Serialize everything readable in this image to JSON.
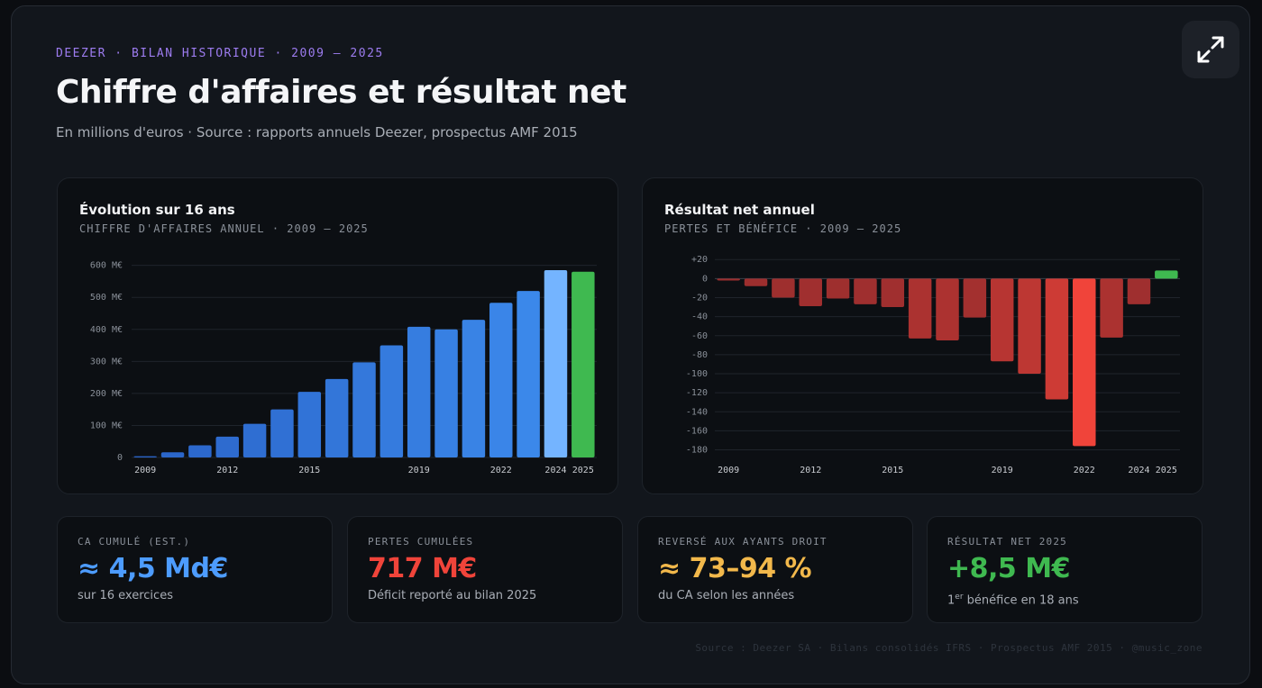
{
  "header": {
    "eyebrow": "DEEZER · BILAN HISTORIQUE · 2009 – 2025",
    "title": "Chiffre d'affaires et résultat net",
    "subtitle": "En millions d'euros · Source : rapports annuels Deezer, prospectus AMF 2015"
  },
  "toolbar": {
    "expand_icon": "expand-icon"
  },
  "chart_data": [
    {
      "type": "bar",
      "title": "Évolution sur 16 ans",
      "subtitle": "CHIFFRE D'AFFAIRES ANNUEL · 2009 – 2025",
      "categories": [
        "2009",
        "2010",
        "2011",
        "2012",
        "2013",
        "2014",
        "2015",
        "2016",
        "2017",
        "2018",
        "2019",
        "2020",
        "2021",
        "2022",
        "2023",
        "2024",
        "2025"
      ],
      "x_tick_labels": [
        "2009",
        "",
        "",
        "2012",
        "",
        "",
        "2015",
        "",
        "",
        "",
        "2019",
        "",
        "",
        "2022",
        "",
        "2024",
        "2025"
      ],
      "values": [
        4,
        16,
        38,
        65,
        105,
        150,
        205,
        245,
        297,
        350,
        408,
        400,
        430,
        483,
        520,
        585,
        580
      ],
      "y_tick_labels": [
        "600 M€",
        "500 M€",
        "400 M€",
        "300 M€",
        "200 M€",
        "100 M€",
        "0"
      ],
      "y_ticks": [
        600,
        500,
        400,
        300,
        200,
        100,
        0
      ],
      "ylim": [
        0,
        630
      ],
      "colors": {
        "base": "#2a63c8",
        "mid": "#3b88ea",
        "latest": "#74b4ff",
        "highlight": "#3fb950"
      }
    },
    {
      "type": "bar",
      "title": "Résultat net annuel",
      "subtitle": "PERTES ET BÉNÉFICE · 2009 – 2025",
      "categories": [
        "2009",
        "2010",
        "2011",
        "2012",
        "2013",
        "2014",
        "2015",
        "2016",
        "2017",
        "2018",
        "2019",
        "2020",
        "2021",
        "2022",
        "2023",
        "2024",
        "2025"
      ],
      "x_tick_labels": [
        "2009",
        "",
        "",
        "2012",
        "",
        "",
        "2015",
        "",
        "",
        "",
        "2019",
        "",
        "",
        "2022",
        "",
        "2024",
        "2025"
      ],
      "values": [
        -2,
        -8,
        -20,
        -29,
        -21,
        -27,
        -30,
        -63,
        -65,
        -41,
        -87,
        -100,
        -127,
        -176,
        -62,
        -27,
        8.5
      ],
      "y_tick_labels": [
        "+20",
        "0",
        "-20",
        "-40",
        "-60",
        "-80",
        "-100",
        "-120",
        "-140",
        "-160",
        "-180"
      ],
      "y_ticks": [
        20,
        0,
        -20,
        -40,
        -60,
        -80,
        -100,
        -120,
        -140,
        -160,
        -180
      ],
      "ylim": [
        -188,
        24
      ],
      "colors": {
        "loss": "#9b2e2e",
        "loss_peak": "#f0443a",
        "profit": "#3fb950"
      }
    }
  ],
  "kpis": [
    {
      "label": "CA CUMULÉ (EST.)",
      "value": "≈ 4,5 Md€",
      "note": "sur 16 exercices",
      "color": "#4d9cff"
    },
    {
      "label": "PERTES CUMULÉES",
      "value": "717 M€",
      "note": "Déficit reporté au bilan 2025",
      "color": "#f0443a"
    },
    {
      "label": "REVERSÉ AUX AYANTS DROIT",
      "value": "≈ 73–94 %",
      "note": "du CA selon les années",
      "color": "#f2b84b"
    },
    {
      "label": "RÉSULTAT NET 2025",
      "value": "+8,5 M€",
      "note_sup": "er",
      "note_pre": "1",
      "note": "bénéfice en 18 ans",
      "color": "#3fb950"
    }
  ],
  "footer": "Source : Deezer SA · Bilans consolidés IFRS · Prospectus AMF 2015 · @music_zone"
}
